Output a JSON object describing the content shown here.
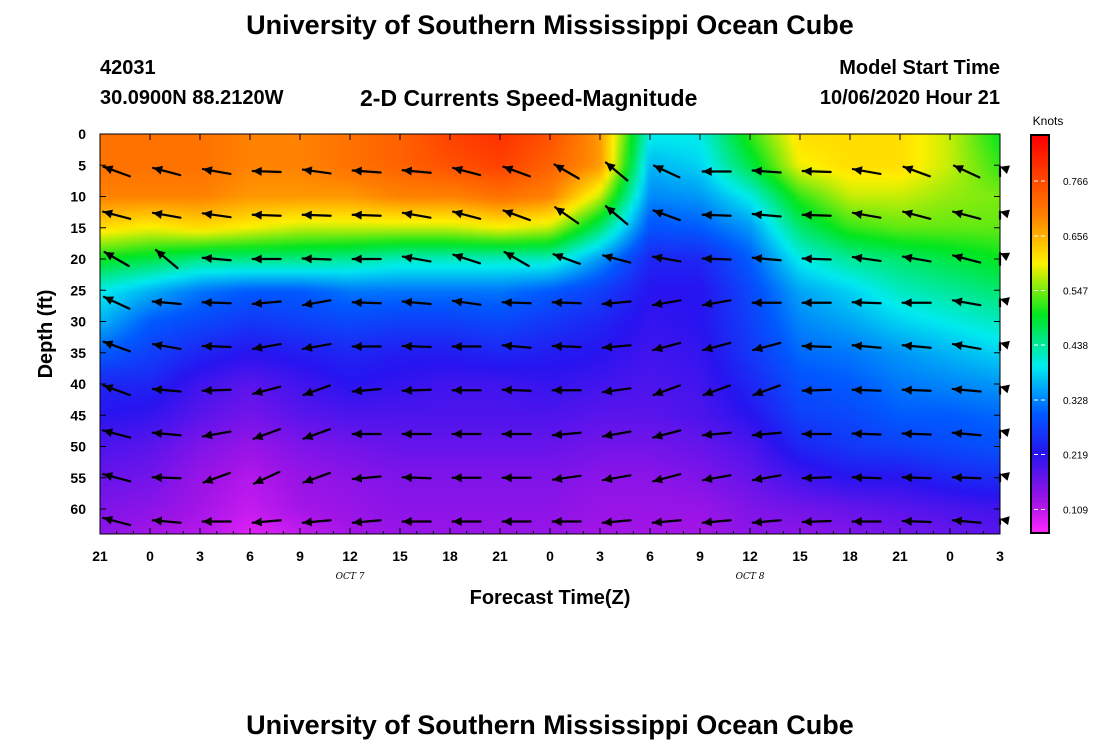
{
  "header": {
    "title_top": "University of Southern Mississippi Ocean Cube",
    "title_bottom": "University of Southern Mississippi Ocean Cube",
    "station_id": "42031",
    "station_coords": "30.0900N 88.2120W",
    "plot_title": "2-D Currents Speed-Magnitude",
    "model_start_label": "Model Start Time",
    "model_start_value": "10/06/2020 Hour 21"
  },
  "chart_data": {
    "type": "heatmap",
    "title": "2-D Currents Speed-Magnitude",
    "xlabel": "Forecast Time(Z)",
    "ylabel": "Depth (ft)",
    "x_ticks": [
      "21",
      "0",
      "3",
      "6",
      "9",
      "12",
      "15",
      "18",
      "21",
      "0",
      "3",
      "6",
      "9",
      "12",
      "15",
      "18",
      "21",
      "0",
      "3"
    ],
    "x_hours": [
      21,
      24,
      27,
      30,
      33,
      36,
      39,
      42,
      45,
      48,
      51,
      54,
      57,
      60,
      63,
      66,
      69,
      72,
      75
    ],
    "xlim": [
      21,
      75
    ],
    "date_labels": [
      {
        "text": "OCT 7",
        "hour": 36
      },
      {
        "text": "OCT 8",
        "hour": 60
      }
    ],
    "y_ticks": [
      0,
      5,
      10,
      15,
      20,
      25,
      30,
      35,
      40,
      45,
      50,
      55,
      60
    ],
    "ylim": [
      0,
      64
    ],
    "colorbar": {
      "unit": "Knots",
      "ticks": [
        0.109,
        0.219,
        0.328,
        0.438,
        0.547,
        0.656,
        0.766
      ],
      "range": [
        0.06,
        0.86
      ]
    },
    "speed_profiles": [
      {
        "hour": 21,
        "v": [
          0.72,
          0.72,
          0.7,
          0.62,
          0.5,
          0.4,
          0.36,
          0.3,
          0.24,
          0.22,
          0.19,
          0.17,
          0.15,
          0.14
        ]
      },
      {
        "hour": 24,
        "v": [
          0.72,
          0.72,
          0.7,
          0.6,
          0.48,
          0.36,
          0.3,
          0.27,
          0.24,
          0.21,
          0.18,
          0.16,
          0.14,
          0.12
        ]
      },
      {
        "hour": 27,
        "v": [
          0.72,
          0.72,
          0.7,
          0.62,
          0.45,
          0.32,
          0.28,
          0.24,
          0.2,
          0.18,
          0.15,
          0.13,
          0.12,
          0.11
        ]
      },
      {
        "hour": 30,
        "v": [
          0.7,
          0.7,
          0.68,
          0.6,
          0.45,
          0.3,
          0.26,
          0.22,
          0.18,
          0.16,
          0.13,
          0.11,
          0.1,
          0.08
        ]
      },
      {
        "hour": 33,
        "v": [
          0.7,
          0.7,
          0.68,
          0.58,
          0.45,
          0.3,
          0.27,
          0.23,
          0.2,
          0.18,
          0.15,
          0.13,
          0.12,
          0.1
        ]
      },
      {
        "hour": 36,
        "v": [
          0.72,
          0.72,
          0.68,
          0.58,
          0.44,
          0.32,
          0.28,
          0.24,
          0.22,
          0.19,
          0.16,
          0.14,
          0.13,
          0.12
        ]
      },
      {
        "hour": 39,
        "v": [
          0.74,
          0.74,
          0.7,
          0.58,
          0.42,
          0.32,
          0.27,
          0.23,
          0.21,
          0.19,
          0.17,
          0.15,
          0.14,
          0.13
        ]
      },
      {
        "hour": 42,
        "v": [
          0.78,
          0.76,
          0.7,
          0.58,
          0.42,
          0.32,
          0.27,
          0.23,
          0.2,
          0.19,
          0.17,
          0.15,
          0.14,
          0.13
        ]
      },
      {
        "hour": 45,
        "v": [
          0.8,
          0.78,
          0.72,
          0.6,
          0.42,
          0.32,
          0.28,
          0.24,
          0.2,
          0.19,
          0.17,
          0.15,
          0.14,
          0.13
        ]
      },
      {
        "hour": 48,
        "v": [
          0.76,
          0.74,
          0.7,
          0.58,
          0.42,
          0.3,
          0.26,
          0.23,
          0.21,
          0.19,
          0.17,
          0.15,
          0.14,
          0.13
        ]
      },
      {
        "hour": 51,
        "v": [
          0.68,
          0.68,
          0.58,
          0.46,
          0.34,
          0.27,
          0.24,
          0.22,
          0.2,
          0.18,
          0.16,
          0.14,
          0.13,
          0.12
        ]
      },
      {
        "hour": 54,
        "v": [
          0.4,
          0.36,
          0.33,
          0.29,
          0.24,
          0.22,
          0.21,
          0.2,
          0.19,
          0.18,
          0.16,
          0.14,
          0.13,
          0.12
        ]
      },
      {
        "hour": 57,
        "v": [
          0.4,
          0.38,
          0.34,
          0.3,
          0.24,
          0.22,
          0.22,
          0.21,
          0.2,
          0.19,
          0.17,
          0.15,
          0.13,
          0.12
        ]
      },
      {
        "hour": 60,
        "v": [
          0.52,
          0.48,
          0.4,
          0.34,
          0.3,
          0.28,
          0.27,
          0.26,
          0.24,
          0.22,
          0.19,
          0.17,
          0.15,
          0.14
        ]
      },
      {
        "hour": 63,
        "v": [
          0.62,
          0.6,
          0.52,
          0.46,
          0.4,
          0.35,
          0.33,
          0.31,
          0.29,
          0.27,
          0.24,
          0.2,
          0.16,
          0.14
        ]
      },
      {
        "hour": 66,
        "v": [
          0.62,
          0.62,
          0.58,
          0.52,
          0.44,
          0.38,
          0.35,
          0.32,
          0.3,
          0.28,
          0.26,
          0.22,
          0.17,
          0.15
        ]
      },
      {
        "hour": 69,
        "v": [
          0.62,
          0.62,
          0.58,
          0.54,
          0.46,
          0.42,
          0.38,
          0.34,
          0.32,
          0.3,
          0.27,
          0.22,
          0.18,
          0.16
        ]
      },
      {
        "hour": 72,
        "v": [
          0.58,
          0.58,
          0.56,
          0.54,
          0.48,
          0.44,
          0.4,
          0.36,
          0.33,
          0.3,
          0.28,
          0.24,
          0.19,
          0.17
        ]
      },
      {
        "hour": 75,
        "v": [
          0.5,
          0.52,
          0.55,
          0.54,
          0.5,
          0.46,
          0.42,
          0.38,
          0.34,
          0.31,
          0.29,
          0.25,
          0.2,
          0.18
        ]
      }
    ],
    "profile_depths": [
      0,
      5,
      10,
      15,
      20,
      25,
      30,
      35,
      40,
      45,
      50,
      55,
      60,
      64
    ],
    "vector_depths": [
      6,
      13,
      20,
      27,
      34,
      41,
      48,
      55,
      62
    ],
    "vector_hours": [
      22,
      25,
      28,
      31,
      34,
      37,
      40,
      43,
      46,
      49,
      52,
      55,
      58,
      61,
      64,
      67,
      70,
      73,
      76
    ],
    "vector_dirs_deg": [
      [
        160,
        165,
        170,
        178,
        172,
        176,
        175,
        165,
        160,
        150,
        140,
        155,
        180,
        176,
        178,
        170,
        160,
        155,
        160
      ],
      [
        165,
        170,
        172,
        178,
        178,
        178,
        170,
        165,
        160,
        145,
        140,
        160,
        178,
        175,
        178,
        170,
        165,
        165,
        165
      ],
      [
        150,
        140,
        175,
        180,
        178,
        180,
        170,
        162,
        150,
        160,
        165,
        170,
        178,
        175,
        178,
        172,
        170,
        165,
        155
      ],
      [
        155,
        175,
        178,
        185,
        190,
        178,
        175,
        172,
        178,
        178,
        185,
        190,
        190,
        180,
        180,
        178,
        180,
        170,
        165
      ],
      [
        160,
        170,
        178,
        190,
        190,
        180,
        178,
        180,
        175,
        178,
        185,
        195,
        195,
        195,
        178,
        175,
        175,
        170,
        165
      ],
      [
        160,
        175,
        182,
        195,
        200,
        185,
        182,
        180,
        178,
        180,
        188,
        200,
        200,
        200,
        182,
        178,
        178,
        175,
        165
      ],
      [
        165,
        175,
        190,
        200,
        200,
        180,
        180,
        180,
        180,
        185,
        190,
        195,
        185,
        185,
        180,
        178,
        178,
        175,
        165
      ],
      [
        165,
        178,
        200,
        205,
        200,
        185,
        178,
        180,
        180,
        188,
        190,
        195,
        190,
        190,
        182,
        178,
        178,
        178,
        165
      ],
      [
        165,
        175,
        180,
        185,
        185,
        185,
        180,
        180,
        180,
        180,
        185,
        185,
        185,
        185,
        182,
        180,
        178,
        175,
        170
      ]
    ]
  }
}
